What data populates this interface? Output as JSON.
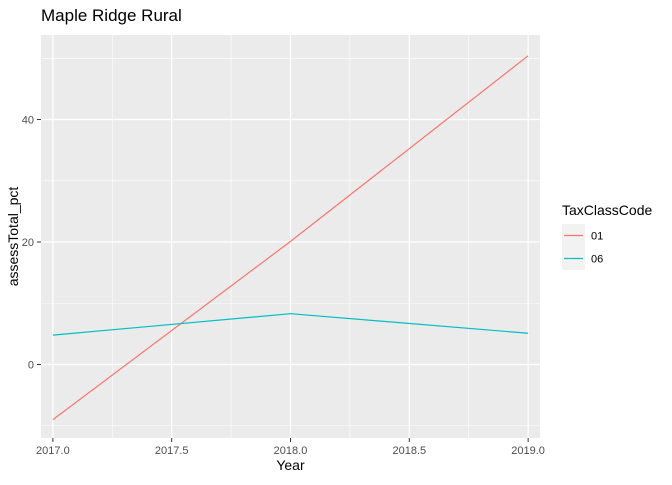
{
  "chart_data": {
    "type": "line",
    "title": "Maple Ridge Rural",
    "xlabel": "Year",
    "ylabel": "assessTotal_pct",
    "xlim": [
      2016.95,
      2019.05
    ],
    "ylim": [
      -12,
      53.8
    ],
    "x_ticks": [
      2017.0,
      2017.5,
      2018.0,
      2018.5,
      2019.0
    ],
    "x_tick_labels": [
      "2017.0",
      "2017.5",
      "2018.0",
      "2018.5",
      "2019.0"
    ],
    "y_ticks": [
      0,
      20,
      40
    ],
    "y_tick_labels": [
      "0",
      "20",
      "40"
    ],
    "grid": true,
    "legend": {
      "title": "TaxClassCode",
      "placement": "right"
    },
    "series": [
      {
        "name": "01",
        "color": "#F8766D",
        "x": [
          2017,
          2018,
          2019
        ],
        "y": [
          -9,
          20.1,
          50.4
        ]
      },
      {
        "name": "06",
        "color": "#00BFC4",
        "x": [
          2017,
          2018,
          2019
        ],
        "y": [
          4.8,
          8.3,
          5.1
        ]
      }
    ],
    "panel_color": "#EBEBEB",
    "grid_color": "#FFFFFF"
  }
}
